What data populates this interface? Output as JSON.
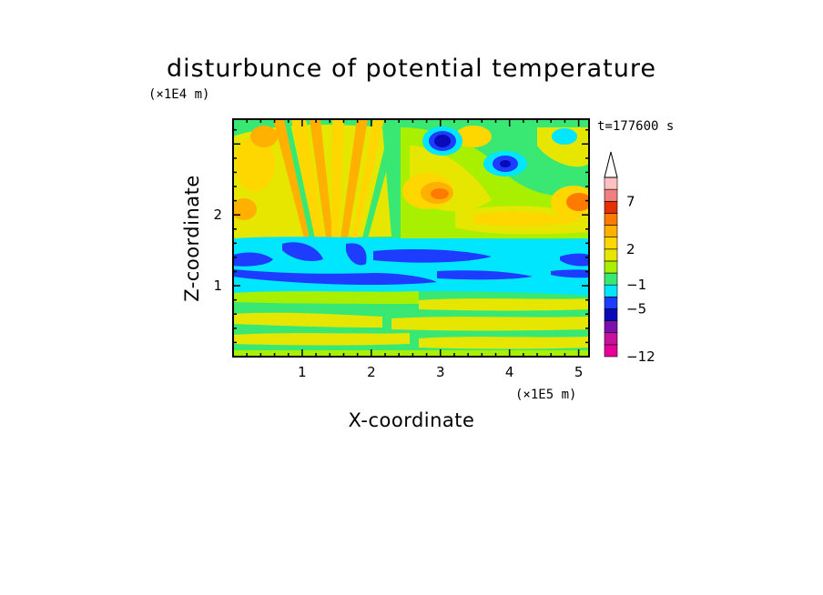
{
  "chart_data": {
    "type": "heatmap",
    "title": "disturbunce of potential temperature",
    "xlabel": "X-coordinate",
    "ylabel": "Z-coordinate",
    "x_unit": "(×1E5 m)",
    "y_unit": "(×1E4 m)",
    "time_label": "t=177600 s",
    "xlim": [
      0,
      5.15
    ],
    "ylim": [
      0,
      3.35
    ],
    "x_ticks": [
      1,
      2,
      3,
      4,
      5
    ],
    "y_ticks": [
      1,
      2
    ],
    "colorbar": {
      "levels": [
        -12,
        -10,
        -8,
        -6,
        -5,
        -3,
        -1,
        0,
        1,
        2,
        3,
        4,
        5,
        7,
        9,
        11
      ],
      "tick_labels": [
        "7",
        "2",
        "−1",
        "−5",
        "−12"
      ],
      "tick_values": [
        7,
        2,
        -1,
        -5,
        -12
      ],
      "colors": [
        "#e60099",
        "#c8119d",
        "#7c0fae",
        "#0a0ab8",
        "#1e3cff",
        "#00e6ff",
        "#39e872",
        "#a8f000",
        "#e6e600",
        "#ffd700",
        "#ffb000",
        "#ff7a00",
        "#e63000",
        "#f08080",
        "#ffc0c0"
      ],
      "extend_top": true
    },
    "field_description": {
      "band_z_1_to_1_5": -3,
      "surface_layer": 2,
      "upper_warm_pockets": [
        [
          2.9,
          2.3,
          7
        ],
        [
          0.3,
          2.6,
          5
        ],
        [
          5.0,
          2.2,
          7
        ]
      ],
      "upper_cold_pockets": [
        [
          3.0,
          3.05,
          -6
        ],
        [
          4.0,
          2.8,
          -5
        ]
      ]
    }
  }
}
